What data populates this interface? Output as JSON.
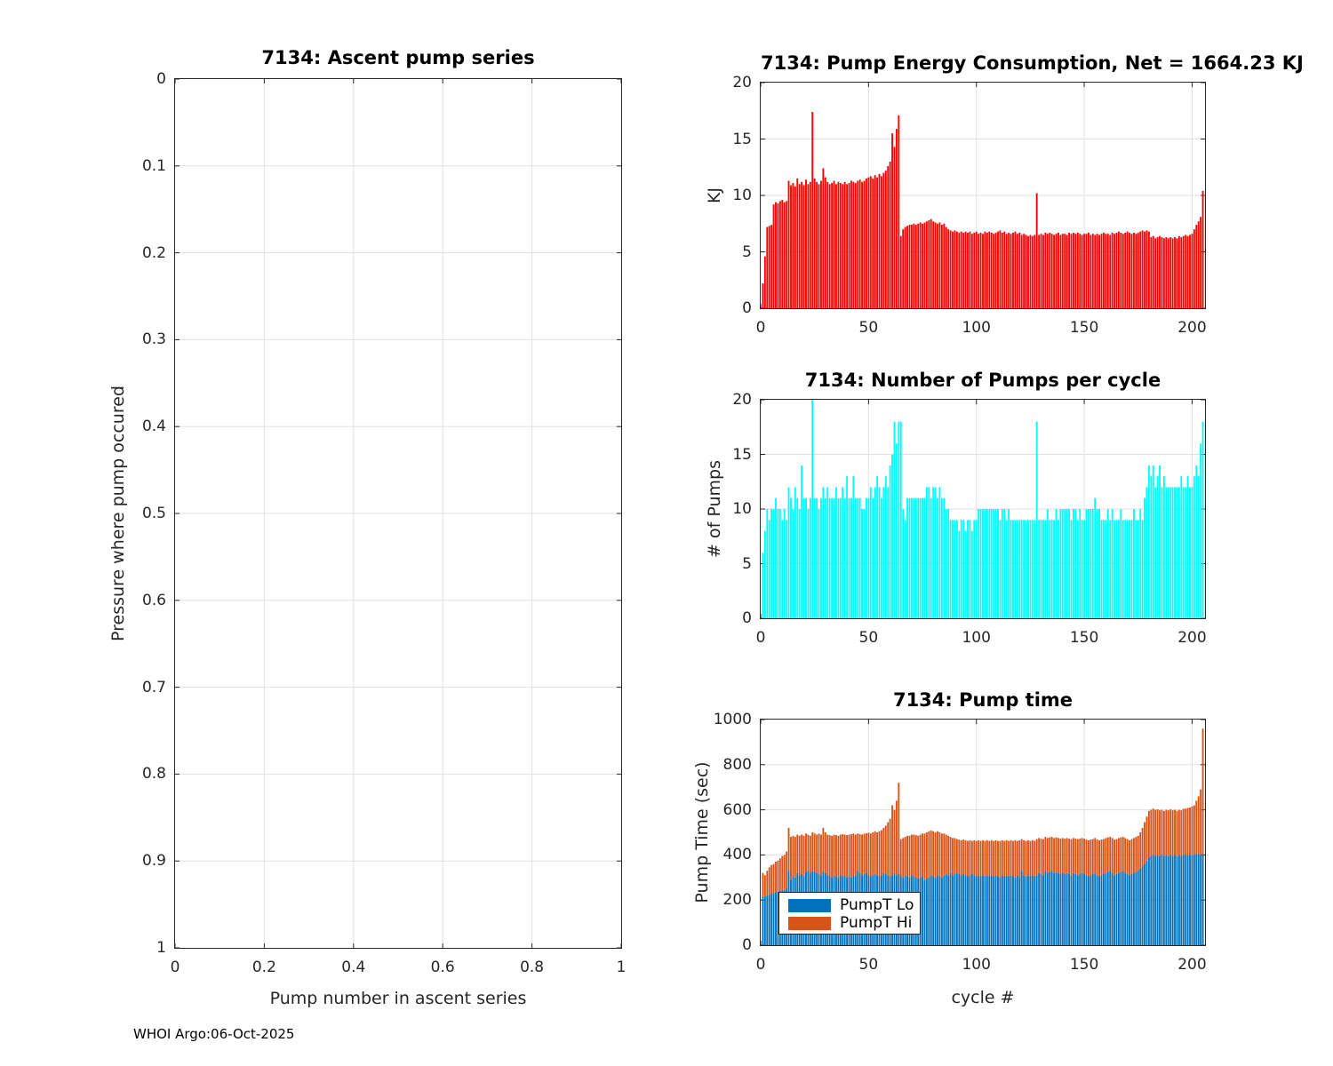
{
  "footer": "WHOI Argo:06-Oct-2025",
  "colors": {
    "energy_bars": "#ff0000",
    "pumps_bars": "#00ffff",
    "pump_lo": "#0072bd",
    "pump_hi": "#d95319",
    "grid": "#e0e0e0",
    "axis": "#262626"
  },
  "chart_data": [
    {
      "id": "ascent",
      "type": "bar",
      "title": "7134: Ascent pump series",
      "xlabel": "Pump number in ascent series",
      "ylabel": "Pressure where pump occured",
      "xlim": [
        0,
        1
      ],
      "ylim": [
        0,
        1
      ],
      "y_inverted": true,
      "grid": true,
      "xticks": [
        0,
        0.2,
        0.4,
        0.6,
        0.8,
        1
      ],
      "xtick_labels": [
        "0",
        "0.2",
        "0.4",
        "0.6",
        "0.8",
        "1"
      ],
      "yticks": [
        0,
        0.1,
        0.2,
        0.3,
        0.4,
        0.5,
        0.6,
        0.7,
        0.8,
        0.9,
        1
      ],
      "ytick_labels": [
        "0",
        "0.1",
        "0.2",
        "0.3",
        "0.4",
        "0.5",
        "0.6",
        "0.7",
        "0.8",
        "0.9",
        "1"
      ],
      "values": [],
      "note": "axes empty - no pumps plotted"
    },
    {
      "id": "energy",
      "type": "bar",
      "title": "7134: Pump Energy Consumption,  Net = 1664.23 KJ",
      "xlabel": "",
      "ylabel": "KJ",
      "xlim": [
        0,
        206
      ],
      "ylim": [
        0,
        20
      ],
      "grid": true,
      "xticks": [
        0,
        50,
        100,
        150,
        200
      ],
      "xtick_labels": [
        "0",
        "50",
        "100",
        "150",
        "200"
      ],
      "yticks": [
        0,
        5,
        10,
        15,
        20
      ],
      "ytick_labels": [
        "0",
        "5",
        "10",
        "15",
        "20"
      ],
      "x_start": 1,
      "bar_color": "#ff0000",
      "values": [
        2.2,
        4.6,
        7.2,
        7.3,
        7.4,
        9.2,
        9.4,
        9.3,
        9.5,
        9.6,
        9.4,
        9.5,
        11.3,
        10.9,
        11.1,
        10.8,
        11.5,
        11.0,
        11.2,
        10.9,
        11.4,
        11.0,
        11.2,
        17.4,
        11.5,
        11.2,
        11.0,
        11.3,
        12.4,
        11.6,
        11.2,
        11.0,
        11.1,
        11.3,
        11.0,
        11.2,
        11.1,
        11.0,
        11.2,
        11.0,
        11.1,
        11.3,
        11.2,
        11.1,
        11.3,
        11.4,
        11.2,
        11.3,
        11.5,
        11.6,
        11.7,
        11.5,
        11.8,
        11.6,
        11.9,
        11.7,
        12.0,
        12.2,
        12.6,
        13.0,
        15.5,
        14.3,
        15.9,
        17.1,
        6.4,
        7.0,
        7.2,
        7.3,
        7.4,
        7.4,
        7.5,
        7.4,
        7.5,
        7.6,
        7.5,
        7.6,
        7.7,
        7.8,
        7.9,
        7.7,
        7.6,
        7.5,
        7.6,
        7.4,
        7.5,
        7.2,
        7.0,
        6.9,
        6.8,
        6.9,
        6.8,
        6.7,
        6.8,
        6.7,
        6.8,
        6.7,
        6.8,
        6.6,
        6.7,
        6.8,
        6.6,
        6.7,
        6.6,
        6.8,
        6.7,
        6.8,
        6.7,
        6.6,
        6.7,
        6.8,
        6.9,
        6.7,
        6.8,
        6.6,
        6.7,
        6.6,
        6.7,
        6.8,
        6.6,
        6.7,
        6.5,
        6.6,
        6.5,
        6.4,
        6.5,
        6.4,
        6.5,
        10.2,
        6.5,
        6.6,
        6.5,
        6.7,
        6.6,
        6.7,
        6.6,
        6.5,
        6.6,
        6.7,
        6.5,
        6.6,
        6.6,
        6.5,
        6.7,
        6.6,
        6.7,
        6.6,
        6.7,
        6.6,
        6.5,
        6.6,
        6.6,
        6.7,
        6.5,
        6.6,
        6.5,
        6.6,
        6.5,
        6.6,
        6.7,
        6.6,
        6.6,
        6.5,
        6.7,
        6.6,
        6.7,
        6.8,
        6.7,
        6.6,
        6.7,
        6.8,
        6.7,
        6.6,
        6.7,
        6.6,
        6.7,
        6.8,
        6.9,
        6.8,
        6.9,
        6.8,
        6.3,
        6.4,
        6.2,
        6.3,
        6.4,
        6.3,
        6.2,
        6.3,
        6.2,
        6.3,
        6.2,
        6.3,
        6.2,
        6.4,
        6.3,
        6.4,
        6.5,
        6.4,
        6.5,
        6.6,
        7.0,
        7.4,
        7.7,
        8.1,
        10.4
      ]
    },
    {
      "id": "pumps",
      "type": "bar",
      "title": "7134: Number of Pumps per cycle",
      "xlabel": "",
      "ylabel": "# of Pumps",
      "xlim": [
        0,
        206
      ],
      "ylim": [
        0,
        20
      ],
      "grid": true,
      "xticks": [
        0,
        50,
        100,
        150,
        200
      ],
      "xtick_labels": [
        "0",
        "50",
        "100",
        "150",
        "200"
      ],
      "yticks": [
        0,
        5,
        10,
        15,
        20
      ],
      "ytick_labels": [
        "0",
        "5",
        "10",
        "15",
        "20"
      ],
      "x_start": 1,
      "bar_color": "#00ffff",
      "values": [
        6,
        8,
        10,
        9,
        10,
        10,
        11,
        10,
        10,
        9,
        10,
        9,
        12,
        11,
        10,
        12,
        11,
        10,
        14,
        11,
        11,
        10,
        11,
        20,
        11,
        11,
        10,
        11,
        12,
        11,
        12,
        11,
        11,
        11,
        12,
        11,
        11,
        12,
        11,
        13,
        11,
        11,
        13,
        11,
        11,
        11,
        10,
        10,
        11,
        11,
        12,
        11,
        12,
        13,
        12,
        11,
        12,
        13,
        12,
        14,
        15,
        18,
        16,
        18,
        18,
        10,
        9,
        11,
        11,
        11,
        11,
        11,
        11,
        11,
        11,
        11,
        12,
        12,
        11,
        12,
        12,
        11,
        12,
        11,
        11,
        10,
        10,
        9,
        9,
        9,
        9,
        8,
        9,
        9,
        8,
        9,
        9,
        8,
        9,
        9,
        10,
        10,
        10,
        10,
        10,
        10,
        10,
        10,
        10,
        10,
        9,
        10,
        10,
        9,
        10,
        9,
        9,
        9,
        9,
        9,
        9,
        9,
        9,
        9,
        9,
        9,
        9,
        18,
        9,
        9,
        9,
        9,
        10,
        9,
        9,
        9,
        10,
        9,
        10,
        10,
        10,
        10,
        10,
        9,
        10,
        10,
        9,
        10,
        9,
        9,
        10,
        10,
        10,
        10,
        11,
        10,
        10,
        9,
        9,
        9,
        10,
        9,
        10,
        9,
        9,
        9,
        10,
        9,
        9,
        9,
        9,
        9,
        10,
        9,
        9,
        10,
        9,
        11,
        12,
        14,
        13,
        14,
        12,
        13,
        14,
        12,
        13,
        12,
        12,
        12,
        12,
        12,
        12,
        12,
        13,
        12,
        12,
        13,
        12,
        12,
        13,
        14,
        13,
        16,
        18
      ]
    },
    {
      "id": "pumptime",
      "type": "stacked-bar",
      "title": "7134: Pump time",
      "xlabel": "cycle #",
      "ylabel": "Pump Time (sec)",
      "xlim": [
        0,
        206
      ],
      "ylim": [
        0,
        1000
      ],
      "grid": true,
      "xticks": [
        0,
        50,
        100,
        150,
        200
      ],
      "xtick_labels": [
        "0",
        "50",
        "100",
        "150",
        "200"
      ],
      "yticks": [
        0,
        200,
        400,
        600,
        800,
        1000
      ],
      "ytick_labels": [
        "0",
        "200",
        "400",
        "600",
        "800",
        "1000"
      ],
      "x_start": 1,
      "legend_position": "lower-left",
      "series": [
        {
          "name": "PumpT Lo",
          "color": "#0072bd",
          "values": [
            215,
            218,
            220,
            222,
            228,
            232,
            235,
            238,
            240,
            242,
            245,
            250,
            330,
            290,
            310,
            300,
            320,
            310,
            315,
            305,
            325,
            330,
            320,
            330,
            325,
            320,
            315,
            310,
            330,
            320,
            310,
            305,
            300,
            310,
            305,
            300,
            310,
            305,
            310,
            300,
            305,
            300,
            310,
            305,
            330,
            320,
            310,
            315,
            320,
            310,
            305,
            310,
            315,
            310,
            305,
            310,
            320,
            315,
            310,
            305,
            310,
            320,
            310,
            315,
            305,
            300,
            310,
            305,
            300,
            310,
            305,
            300,
            295,
            300,
            305,
            290,
            295,
            300,
            310,
            305,
            300,
            310,
            305,
            300,
            310,
            315,
            310,
            320,
            310,
            315,
            320,
            315,
            310,
            315,
            310,
            305,
            310,
            315,
            310,
            305,
            310,
            305,
            310,
            305,
            310,
            305,
            310,
            305,
            310,
            305,
            300,
            310,
            305,
            310,
            305,
            310,
            305,
            300,
            310,
            305,
            330,
            310,
            305,
            310,
            305,
            310,
            305,
            310,
            320,
            315,
            310,
            330,
            320,
            325,
            330,
            320,
            325,
            320,
            315,
            320,
            315,
            320,
            315,
            310,
            320,
            315,
            310,
            315,
            320,
            315,
            310,
            305,
            310,
            315,
            320,
            310,
            305,
            310,
            315,
            320,
            325,
            330,
            320,
            310,
            315,
            320,
            325,
            330,
            320,
            315,
            310,
            315,
            320,
            325,
            330,
            340,
            350,
            360,
            375,
            390,
            395,
            400,
            395,
            400,
            395,
            400,
            395,
            400,
            395,
            400,
            395,
            400,
            395,
            400,
            395,
            400,
            400,
            400,
            400,
            400,
            400,
            405,
            405,
            400,
            405
          ]
        },
        {
          "name": "PumpT Hi",
          "color": "#d95319",
          "values": [
            105,
            92,
            110,
            123,
            127,
            128,
            135,
            137,
            145,
            153,
            155,
            165,
            190,
            190,
            175,
            180,
            170,
            175,
            175,
            180,
            170,
            160,
            165,
            170,
            170,
            170,
            180,
            180,
            190,
            180,
            180,
            183,
            185,
            180,
            183,
            185,
            180,
            187,
            180,
            188,
            185,
            192,
            185,
            185,
            165,
            172,
            180,
            179,
            176,
            188,
            190,
            190,
            190,
            190,
            200,
            200,
            200,
            215,
            235,
            255,
            310,
            280,
            330,
            405,
            165,
            175,
            170,
            180,
            185,
            180,
            185,
            188,
            190,
            190,
            190,
            205,
            205,
            205,
            198,
            200,
            200,
            195,
            195,
            195,
            185,
            175,
            175,
            160,
            165,
            160,
            150,
            153,
            155,
            153,
            155,
            157,
            155,
            147,
            155,
            157,
            155,
            157,
            155,
            157,
            155,
            157,
            155,
            157,
            155,
            157,
            162,
            155,
            157,
            155,
            157,
            155,
            157,
            165,
            152,
            160,
            140,
            155,
            157,
            155,
            157,
            155,
            157,
            160,
            155,
            157,
            160,
            150,
            155,
            153,
            150,
            155,
            153,
            155,
            157,
            155,
            157,
            155,
            157,
            160,
            155,
            157,
            160,
            157,
            155,
            157,
            158,
            160,
            158,
            155,
            155,
            158,
            160,
            158,
            155,
            155,
            153,
            150,
            155,
            158,
            155,
            155,
            153,
            150,
            155,
            155,
            155,
            155,
            155,
            155,
            155,
            160,
            170,
            185,
            195,
            205,
            205,
            205,
            205,
            202,
            203,
            200,
            200,
            200,
            203,
            202,
            203,
            200,
            200,
            200,
            203,
            205,
            205,
            208,
            210,
            215,
            220,
            235,
            255,
            290,
            555
          ]
        }
      ]
    }
  ]
}
